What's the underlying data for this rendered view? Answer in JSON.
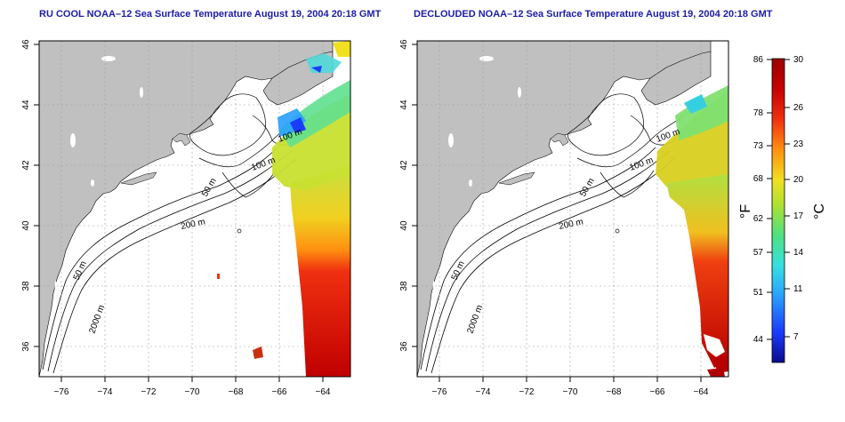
{
  "panels": [
    {
      "title": "RU COOL NOAA–12 Sea Surface Temperature August 19, 2004 20:18 GMT",
      "x_ticks": [
        "−76",
        "−74",
        "−72",
        "−70",
        "−68",
        "−66",
        "−64"
      ],
      "y_ticks": [
        "36",
        "38",
        "40",
        "42",
        "44",
        "46"
      ],
      "contour_labels": [
        "100 m",
        "100 m",
        "50 m",
        "200 m",
        "50 m",
        "2000 m"
      ]
    },
    {
      "title": "DECLOUDED NOAA–12 Sea Surface Temperature August 19, 2004 20:18 GMT",
      "x_ticks": [
        "−76",
        "−74",
        "−72",
        "−70",
        "−68",
        "−66",
        "−64"
      ],
      "y_ticks": [
        "36",
        "38",
        "40",
        "42",
        "44",
        "46"
      ],
      "contour_labels": [
        "100 m",
        "100 m",
        "50 m",
        "200 m",
        "50 m",
        "2000 m"
      ]
    }
  ],
  "colorbar": {
    "fahrenheit_ticks": [
      "86",
      "78",
      "73",
      "68",
      "62",
      "57",
      "51",
      "44"
    ],
    "celsius_ticks": [
      "30",
      "26",
      "23",
      "20",
      "17",
      "14",
      "11",
      "7"
    ],
    "fahrenheit_unit": "°F",
    "celsius_unit": "°C",
    "scale_c": [
      5,
      30
    ],
    "palette": [
      "#0a0a8c",
      "#1a3cff",
      "#2aa0ff",
      "#35e0e0",
      "#50e080",
      "#b0e030",
      "#f0e020",
      "#ff9010",
      "#f03010",
      "#c80000",
      "#9a0000"
    ]
  },
  "colors": {
    "land": "#c0c0c0",
    "ocean": "#ffffff",
    "frame": "#000000",
    "title": "#1c1ca8",
    "grid": "#a0a0a0"
  }
}
